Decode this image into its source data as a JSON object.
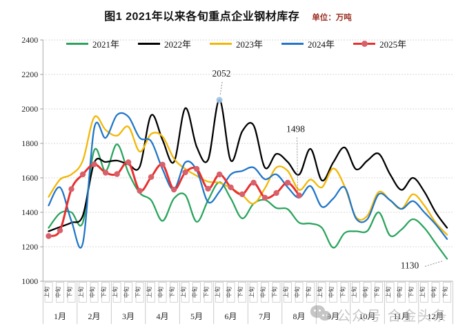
{
  "header": {
    "title": "图1  2021年以来各旬重点企业钢材库存",
    "unit_label": "单位：万吨"
  },
  "watermark": {
    "icon": "wechat-icon",
    "text": "公众号 合金头条"
  },
  "chart_data": {
    "type": "line",
    "title": "图1 2021年以来各旬重点企业钢材库存",
    "unit": "万吨",
    "ylim": [
      1000,
      2400
    ],
    "yticks": [
      1000,
      1200,
      1400,
      1600,
      1800,
      2000,
      2200,
      2400
    ],
    "grid": true,
    "legend_position": "top",
    "x_structure": {
      "months": [
        "1月",
        "2月",
        "3月",
        "4月",
        "5月",
        "6月",
        "7月",
        "8月",
        "9月",
        "10月",
        "11月",
        "12月"
      ],
      "periods": [
        "上旬",
        "中旬",
        "下旬"
      ]
    },
    "series": [
      {
        "name": "2021年",
        "color": "#2aa45c",
        "marker": false,
        "values": [
          1310,
          1395,
          1400,
          1340,
          1760,
          1640,
          1795,
          1630,
          1512,
          1470,
          1350,
          1480,
          1500,
          1345,
          1470,
          1575,
          1480,
          1365,
          1450,
          1472,
          1425,
          1418,
          1340,
          1335,
          1310,
          1195,
          1280,
          1290,
          1292,
          1400,
          1265,
          1300,
          1360,
          1310,
          1220,
          1130
        ]
      },
      {
        "name": "2022年",
        "color": "#000000",
        "marker": false,
        "values": [
          1290,
          1315,
          1340,
          1380,
          1688,
          1692,
          1700,
          1678,
          1665,
          1963,
          1820,
          1692,
          2004,
          1780,
          1705,
          2052,
          1700,
          1870,
          1905,
          1659,
          1739,
          1692,
          1619,
          1768,
          1585,
          1690,
          1776,
          1650,
          1700,
          1740,
          1620,
          1530,
          1600,
          1520,
          1400,
          1310
        ]
      },
      {
        "name": "2023年",
        "color": "#f2b705",
        "marker": false,
        "values": [
          1490,
          1590,
          1620,
          1700,
          1952,
          1878,
          1845,
          1897,
          1752,
          1855,
          1840,
          1712,
          1652,
          1612,
          1578,
          1572,
          1540,
          1500,
          1450,
          1540,
          1660,
          1640,
          1530,
          1590,
          1545,
          1655,
          1550,
          1372,
          1380,
          1518,
          1470,
          1420,
          1505,
          1440,
          1340,
          1270
        ]
      },
      {
        "name": "2024年",
        "color": "#2176c7",
        "marker": false,
        "values": [
          1440,
          1545,
          1350,
          1220,
          1889,
          1832,
          1965,
          1955,
          1832,
          1812,
          1650,
          1532,
          1690,
          1645,
          1460,
          1520,
          1620,
          1640,
          1660,
          1592,
          1620,
          1545,
          1485,
          1552,
          1432,
          1480,
          1545,
          1365,
          1360,
          1505,
          1470,
          1420,
          1465,
          1400,
          1330,
          1245
        ]
      },
      {
        "name": "2025年",
        "color": "#e8302e",
        "marker": true,
        "marker_color": "#d8606b",
        "values": [
          1262,
          1295,
          1535,
          1620,
          1679,
          1630,
          1622,
          1690,
          1525,
          1605,
          1677,
          1532,
          1632,
          1652,
          1537,
          1620,
          1545,
          1505,
          1572,
          1485,
          1512,
          1572,
          1498
        ]
      }
    ],
    "annotations": [
      {
        "label": "2052",
        "series": "2022年",
        "point_index": 15,
        "highlight_dot": true
      },
      {
        "label": "1498",
        "series": "2025年",
        "point_index": 22,
        "highlight_dot": false
      },
      {
        "label": "1130",
        "series": "2021年",
        "point_index": 35,
        "highlight_dot": false
      }
    ]
  }
}
